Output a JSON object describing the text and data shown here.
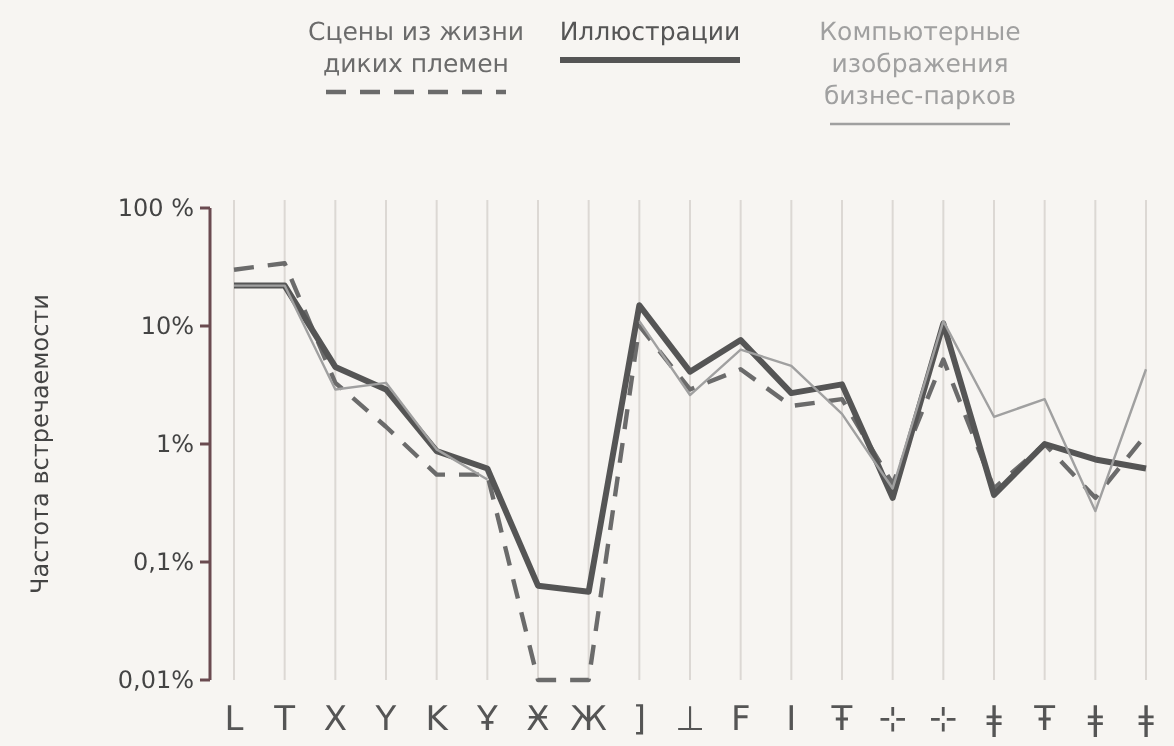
{
  "chart_data": {
    "type": "line",
    "ylabel": "Частота встречаемости",
    "log": true,
    "grid": "x",
    "legend": "top",
    "categories": [
      "L",
      "T",
      "X",
      "Y",
      "K",
      "Ұ",
      "Ӿ",
      "Ж",
      "]",
      "⊥",
      "F",
      "I",
      "Ŧ",
      "⊹",
      "⊹",
      "ǂ",
      "Ŧ",
      "ǂ",
      "ǂ"
    ],
    "ylim": [
      0.01,
      100
    ],
    "yticks": [
      {
        "value": 0.01,
        "label": "0,01%"
      },
      {
        "value": 0.1,
        "label": "0,1%"
      },
      {
        "value": 1,
        "label": "1%"
      },
      {
        "value": 10,
        "label": "10%"
      },
      {
        "value": 100,
        "label": "100 %"
      }
    ],
    "series": [
      {
        "name": "Сцены из жизни диких племен",
        "color": "#6b6b6b",
        "line_style": "dashed",
        "values": [
          30,
          34,
          3.3,
          1.4,
          0.55,
          0.55,
          0.01,
          0.01,
          10,
          2.9,
          4.3,
          2.1,
          2.4,
          0.46,
          5.2,
          0.42,
          1,
          0.35,
          1.2
        ]
      },
      {
        "name": "Иллюстрации",
        "color": "#555555",
        "line_style": "solid",
        "values": [
          22,
          22,
          4.5,
          2.9,
          0.87,
          0.62,
          0.063,
          0.056,
          15,
          4.1,
          7.6,
          2.7,
          3.2,
          0.35,
          10.5,
          0.37,
          1,
          0.74,
          0.62
        ]
      },
      {
        "name": "Компьютерные изображения бизнес-парков",
        "color": "#a0a0a0",
        "line_style": "solid",
        "values": [
          22,
          22,
          2.9,
          3.3,
          0.9,
          0.5,
          null,
          null,
          11,
          2.6,
          6.3,
          4.6,
          1.8,
          0.42,
          11,
          1.7,
          2.4,
          0.27,
          4.3
        ]
      }
    ]
  }
}
